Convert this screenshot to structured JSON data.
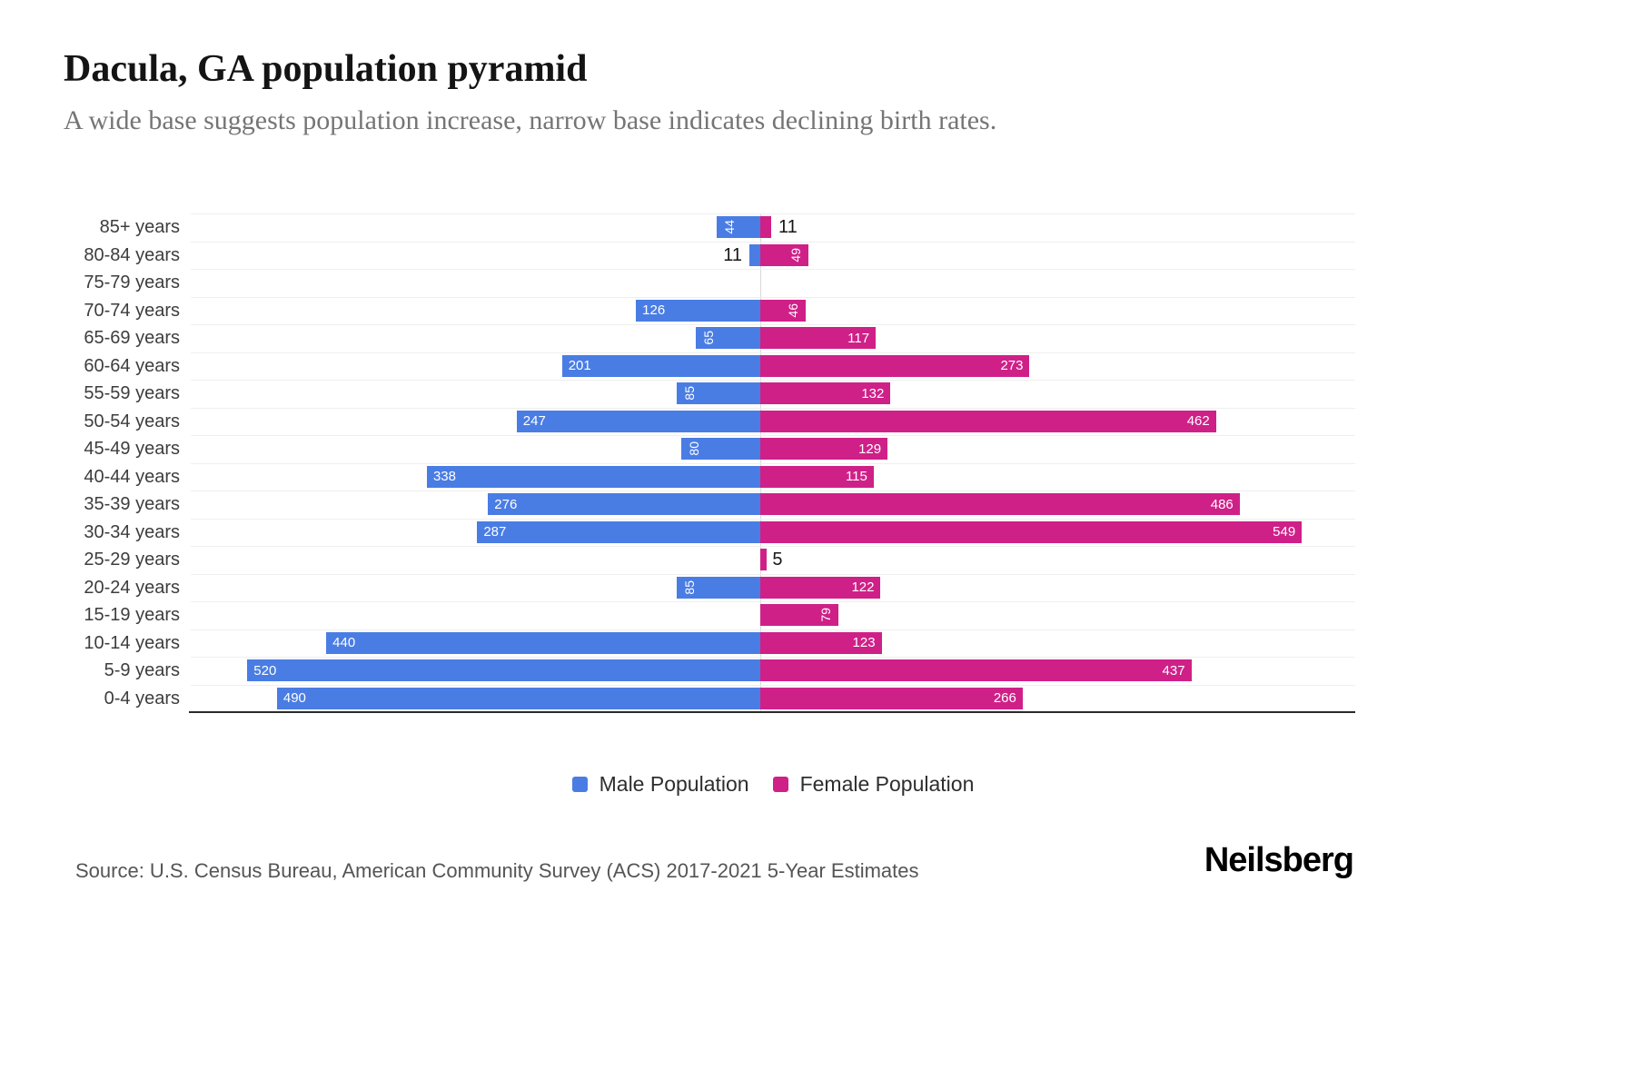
{
  "title": "Dacula, GA population pyramid",
  "subtitle": "A wide base suggests population increase, narrow base indicates declining birth rates.",
  "source": "Source: U.S. Census Bureau, American Community Survey (ACS) 2017-2021 5-Year Estimates",
  "brand": "Neilsberg",
  "legend": {
    "male": "Male Population",
    "female": "Female Population"
  },
  "colors": {
    "male": "#4a7de4",
    "female": "#cf2088"
  },
  "chart_data": {
    "type": "bar",
    "variant": "population-pyramid",
    "orientation": "horizontal",
    "title": "Dacula, GA population pyramid",
    "categories": [
      "85+ years",
      "80-84 years",
      "75-79 years",
      "70-74 years",
      "65-69 years",
      "60-64 years",
      "55-59 years",
      "50-54 years",
      "45-49 years",
      "40-44 years",
      "35-39 years",
      "30-34 years",
      "25-29 years",
      "20-24 years",
      "15-19 years",
      "10-14 years",
      "5-9 years",
      "0-4 years"
    ],
    "series": [
      {
        "name": "Male Population",
        "side": "left",
        "color": "#4a7de4",
        "values": [
          44,
          11,
          0,
          126,
          65,
          201,
          85,
          247,
          80,
          338,
          276,
          287,
          0,
          85,
          0,
          440,
          520,
          490
        ]
      },
      {
        "name": "Female Population",
        "side": "right",
        "color": "#cf2088",
        "values": [
          11,
          49,
          0,
          46,
          117,
          273,
          132,
          462,
          129,
          115,
          486,
          549,
          5,
          122,
          79,
          123,
          437,
          266
        ]
      }
    ],
    "xlim": [
      -577,
      603
    ],
    "grid": true,
    "legend_position": "bottom",
    "value_labels": "on-bars"
  }
}
